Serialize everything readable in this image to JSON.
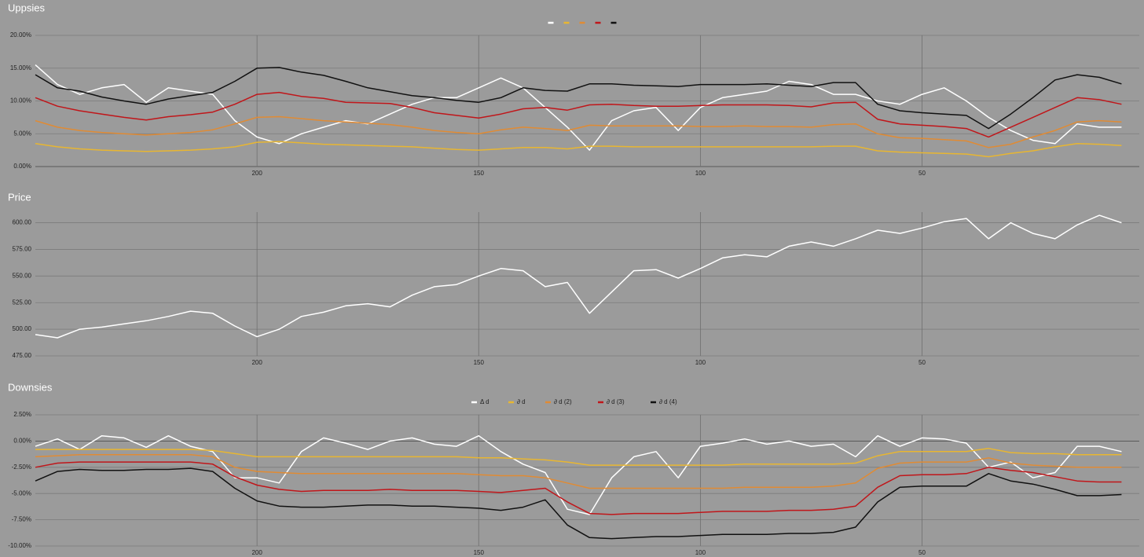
{
  "chart_data": [
    {
      "type": "line",
      "title": "Uppsies",
      "legend": "top",
      "x": [
        250,
        245,
        240,
        235,
        230,
        225,
        220,
        215,
        210,
        205,
        200,
        195,
        190,
        185,
        180,
        175,
        170,
        165,
        160,
        155,
        150,
        145,
        140,
        135,
        130,
        125,
        120,
        115,
        110,
        105,
        100,
        95,
        90,
        85,
        80,
        75,
        70,
        65,
        60,
        55,
        50,
        45,
        40,
        35,
        30,
        25,
        20,
        15,
        10,
        5
      ],
      "xlim": [
        250,
        1
      ],
      "xticks": [
        200,
        150,
        100,
        50
      ],
      "ylim": [
        0,
        20
      ],
      "yticks": [
        {
          "value": 0,
          "label": "0.00%"
        },
        {
          "value": 5,
          "label": "5.00%"
        },
        {
          "value": 10,
          "label": "10.00%"
        },
        {
          "value": 15,
          "label": "15.00%"
        },
        {
          "value": 20,
          "label": "20.00%"
        }
      ],
      "grid": true,
      "series": [
        {
          "color": "#ffffff",
          "values": [
            15.5,
            12.5,
            11.0,
            12.0,
            12.5,
            9.8,
            12.0,
            11.5,
            11.0,
            7.0,
            4.5,
            3.5,
            5.0,
            6.0,
            7.0,
            6.5,
            8.0,
            9.5,
            10.5,
            10.5,
            12.0,
            13.5,
            12.0,
            9.0,
            6.0,
            2.5,
            7.0,
            8.5,
            9.0,
            5.5,
            9.0,
            10.5,
            11.0,
            11.5,
            13.0,
            12.5,
            11.0,
            11.0,
            10.0,
            9.5,
            11.0,
            12.0,
            10.0,
            7.5,
            5.5,
            4.0,
            3.5,
            6.5,
            6.0,
            6.0
          ]
        },
        {
          "color": "#e8b631",
          "values": [
            3.5,
            3.0,
            2.7,
            2.5,
            2.4,
            2.3,
            2.4,
            2.5,
            2.7,
            3.0,
            3.7,
            3.8,
            3.6,
            3.4,
            3.3,
            3.2,
            3.1,
            3.0,
            2.8,
            2.6,
            2.5,
            2.7,
            2.9,
            2.9,
            2.7,
            3.1,
            3.1,
            3.0,
            3.0,
            3.0,
            3.0,
            3.0,
            3.0,
            3.0,
            3.0,
            3.0,
            3.1,
            3.1,
            2.4,
            2.2,
            2.1,
            2.0,
            1.9,
            1.5,
            2.0,
            2.4,
            3.0,
            3.5,
            3.4,
            3.2
          ]
        },
        {
          "color": "#e08b34",
          "values": [
            7.0,
            6.0,
            5.5,
            5.2,
            5.0,
            4.8,
            5.0,
            5.2,
            5.6,
            6.5,
            7.5,
            7.6,
            7.3,
            7.0,
            6.8,
            6.6,
            6.4,
            6.0,
            5.5,
            5.2,
            5.0,
            5.6,
            6.0,
            5.8,
            5.5,
            6.3,
            6.2,
            6.2,
            6.2,
            6.2,
            6.1,
            6.1,
            6.2,
            6.1,
            6.1,
            6.0,
            6.4,
            6.5,
            5.0,
            4.4,
            4.3,
            4.1,
            3.9,
            2.9,
            3.4,
            4.5,
            5.5,
            6.8,
            7.0,
            6.8
          ]
        },
        {
          "color": "#c0161a",
          "values": [
            10.5,
            9.2,
            8.5,
            8.0,
            7.5,
            7.1,
            7.6,
            7.9,
            8.3,
            9.5,
            11.0,
            11.3,
            10.7,
            10.4,
            9.8,
            9.7,
            9.6,
            9.0,
            8.2,
            7.8,
            7.4,
            8.0,
            8.8,
            9.0,
            8.6,
            9.4,
            9.5,
            9.3,
            9.2,
            9.2,
            9.3,
            9.4,
            9.4,
            9.4,
            9.3,
            9.1,
            9.7,
            9.8,
            7.2,
            6.5,
            6.3,
            6.1,
            5.8,
            4.5,
            6.0,
            7.5,
            9.0,
            10.5,
            10.2,
            9.5
          ]
        },
        {
          "color": "#111111",
          "values": [
            14.0,
            12.0,
            11.5,
            10.6,
            10.0,
            9.5,
            10.3,
            10.8,
            11.3,
            13.0,
            15.0,
            15.1,
            14.4,
            13.9,
            13.0,
            12.0,
            11.4,
            10.8,
            10.5,
            10.1,
            9.8,
            10.5,
            12.0,
            11.6,
            11.5,
            12.6,
            12.6,
            12.4,
            12.3,
            12.2,
            12.5,
            12.5,
            12.5,
            12.6,
            12.4,
            12.2,
            12.8,
            12.8,
            9.5,
            8.5,
            8.2,
            8.0,
            7.8,
            5.8,
            8.0,
            10.5,
            13.2,
            14.0,
            13.6,
            12.6
          ]
        }
      ]
    },
    {
      "type": "line",
      "title": "Price",
      "x": [
        250,
        245,
        240,
        235,
        230,
        225,
        220,
        215,
        210,
        205,
        200,
        195,
        190,
        185,
        180,
        175,
        170,
        165,
        160,
        155,
        150,
        145,
        140,
        135,
        130,
        125,
        120,
        115,
        110,
        105,
        100,
        95,
        90,
        85,
        80,
        75,
        70,
        65,
        60,
        55,
        50,
        45,
        40,
        35,
        30,
        25,
        20,
        15,
        10,
        5
      ],
      "xlim": [
        250,
        1
      ],
      "xticks": [
        200,
        150,
        100,
        50
      ],
      "ylim": [
        475,
        610
      ],
      "yticks": [
        {
          "value": 475,
          "label": "475.00"
        },
        {
          "value": 500,
          "label": "500.00"
        },
        {
          "value": 525,
          "label": "525.00"
        },
        {
          "value": 550,
          "label": "550.00"
        },
        {
          "value": 575,
          "label": "575.00"
        },
        {
          "value": 600,
          "label": "600.00"
        }
      ],
      "grid": true,
      "color": "#ffffff",
      "values": [
        495,
        492,
        500,
        502,
        505,
        508,
        512,
        517,
        515,
        503,
        493,
        500,
        512,
        516,
        522,
        524,
        521,
        532,
        540,
        542,
        550,
        557,
        555,
        540,
        544,
        515,
        535,
        555,
        556,
        548,
        557,
        567,
        570,
        568,
        578,
        582,
        578,
        585,
        593,
        590,
        595,
        601,
        604,
        585,
        600,
        590,
        585,
        598,
        607,
        600
      ]
    },
    {
      "type": "line",
      "title": "Downsies",
      "legend": "top",
      "x": [
        250,
        245,
        240,
        235,
        230,
        225,
        220,
        215,
        210,
        205,
        200,
        195,
        190,
        185,
        180,
        175,
        170,
        165,
        160,
        155,
        150,
        145,
        140,
        135,
        130,
        125,
        120,
        115,
        110,
        105,
        100,
        95,
        90,
        85,
        80,
        75,
        70,
        65,
        60,
        55,
        50,
        45,
        40,
        35,
        30,
        25,
        20,
        15,
        10,
        5
      ],
      "xlim": [
        250,
        1
      ],
      "xticks": [
        200,
        150,
        100,
        50
      ],
      "ylim": [
        -10,
        2.5
      ],
      "yticks": [
        {
          "value": -10,
          "label": "-10.00%"
        },
        {
          "value": -7.5,
          "label": "-7.50%"
        },
        {
          "value": -5,
          "label": "-5.00%"
        },
        {
          "value": -2.5,
          "label": "-2.50%"
        },
        {
          "value": 0,
          "label": "0.00%"
        },
        {
          "value": 2.5,
          "label": "2.50%"
        }
      ],
      "grid": true,
      "series": [
        {
          "name": "Δ d",
          "color": "#ffffff",
          "values": [
            -0.5,
            0.2,
            -0.8,
            0.5,
            0.3,
            -0.6,
            0.5,
            -0.5,
            -1.0,
            -3.5,
            -3.5,
            -4.0,
            -1.0,
            0.3,
            -0.2,
            -0.8,
            0.0,
            0.3,
            -0.3,
            -0.5,
            0.5,
            -1.0,
            -2.2,
            -3.0,
            -6.5,
            -7.0,
            -3.5,
            -1.5,
            -1.0,
            -3.5,
            -0.5,
            -0.2,
            0.2,
            -0.3,
            0.0,
            -0.5,
            -0.3,
            -1.5,
            0.5,
            -0.5,
            0.3,
            0.2,
            -0.2,
            -2.5,
            -2.0,
            -3.5,
            -3.0,
            -0.5,
            -0.5,
            -1.0
          ]
        },
        {
          "name": "∂ d",
          "color": "#e8b631",
          "values": [
            -0.8,
            -0.8,
            -0.8,
            -0.8,
            -0.8,
            -0.8,
            -0.8,
            -0.8,
            -0.9,
            -1.2,
            -1.5,
            -1.5,
            -1.5,
            -1.5,
            -1.5,
            -1.5,
            -1.5,
            -1.5,
            -1.5,
            -1.5,
            -1.6,
            -1.6,
            -1.7,
            -1.8,
            -2.0,
            -2.3,
            -2.3,
            -2.3,
            -2.3,
            -2.3,
            -2.3,
            -2.3,
            -2.2,
            -2.2,
            -2.2,
            -2.2,
            -2.2,
            -2.1,
            -1.4,
            -1.0,
            -1.0,
            -1.0,
            -1.0,
            -0.7,
            -1.1,
            -1.2,
            -1.2,
            -1.3,
            -1.3,
            -1.3
          ]
        },
        {
          "name": "∂ d (2)",
          "color": "#e08b34",
          "values": [
            -1.5,
            -1.4,
            -1.3,
            -1.3,
            -1.3,
            -1.3,
            -1.3,
            -1.3,
            -1.5,
            -2.5,
            -2.9,
            -3.0,
            -3.1,
            -3.1,
            -3.1,
            -3.1,
            -3.1,
            -3.1,
            -3.1,
            -3.1,
            -3.2,
            -3.3,
            -3.3,
            -3.5,
            -4.0,
            -4.5,
            -4.5,
            -4.5,
            -4.5,
            -4.5,
            -4.5,
            -4.5,
            -4.4,
            -4.4,
            -4.4,
            -4.4,
            -4.3,
            -4.0,
            -2.6,
            -2.1,
            -2.0,
            -2.0,
            -2.0,
            -1.6,
            -2.1,
            -2.3,
            -2.4,
            -2.5,
            -2.5,
            -2.5
          ]
        },
        {
          "name": "∂ d (3)",
          "color": "#c0161a",
          "values": [
            -2.5,
            -2.1,
            -2.0,
            -2.0,
            -2.0,
            -2.0,
            -2.0,
            -2.0,
            -2.2,
            -3.4,
            -4.2,
            -4.6,
            -4.8,
            -4.7,
            -4.7,
            -4.7,
            -4.6,
            -4.7,
            -4.7,
            -4.7,
            -4.8,
            -4.9,
            -4.7,
            -4.5,
            -5.8,
            -6.9,
            -7.0,
            -6.9,
            -6.9,
            -6.9,
            -6.8,
            -6.7,
            -6.7,
            -6.7,
            -6.6,
            -6.6,
            -6.5,
            -6.2,
            -4.4,
            -3.3,
            -3.2,
            -3.2,
            -3.1,
            -2.5,
            -2.8,
            -3.0,
            -3.4,
            -3.8,
            -3.9,
            -3.9
          ]
        },
        {
          "name": "∂ d (4)",
          "color": "#111111",
          "values": [
            -3.8,
            -2.9,
            -2.7,
            -2.8,
            -2.8,
            -2.7,
            -2.7,
            -2.6,
            -2.9,
            -4.5,
            -5.7,
            -6.2,
            -6.3,
            -6.3,
            -6.2,
            -6.1,
            -6.1,
            -6.2,
            -6.2,
            -6.3,
            -6.4,
            -6.6,
            -6.3,
            -5.6,
            -8.0,
            -9.2,
            -9.3,
            -9.2,
            -9.1,
            -9.1,
            -9.0,
            -8.9,
            -8.9,
            -8.9,
            -8.8,
            -8.8,
            -8.7,
            -8.2,
            -5.8,
            -4.4,
            -4.3,
            -4.3,
            -4.3,
            -3.1,
            -3.8,
            -4.1,
            -4.6,
            -5.2,
            -5.2,
            -5.1
          ]
        }
      ]
    }
  ]
}
